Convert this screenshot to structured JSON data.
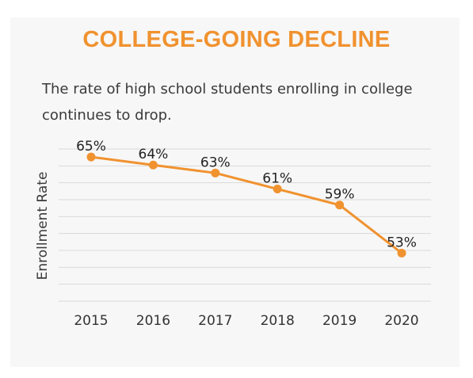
{
  "chart_data": {
    "type": "line",
    "title": "COLLEGE-GOING DECLINE",
    "subtitle": "The rate of high school students enrolling in college continues to drop.",
    "ylabel": "Enrollment Rate",
    "xlabel": "",
    "categories": [
      "2015",
      "2016",
      "2017",
      "2018",
      "2019",
      "2020"
    ],
    "series": [
      {
        "values": [
          65,
          64,
          63,
          61,
          59,
          53
        ],
        "labels": [
          "65%",
          "64%",
          "63%",
          "61%",
          "59%",
          "53%"
        ]
      }
    ],
    "ylim": [
      47,
      66
    ],
    "grid": true,
    "legend": "none",
    "colors": {
      "accent": "#f0922f",
      "line": "#f0922f",
      "grid": "#d9d9d9",
      "background": "#f7f7f7"
    }
  }
}
